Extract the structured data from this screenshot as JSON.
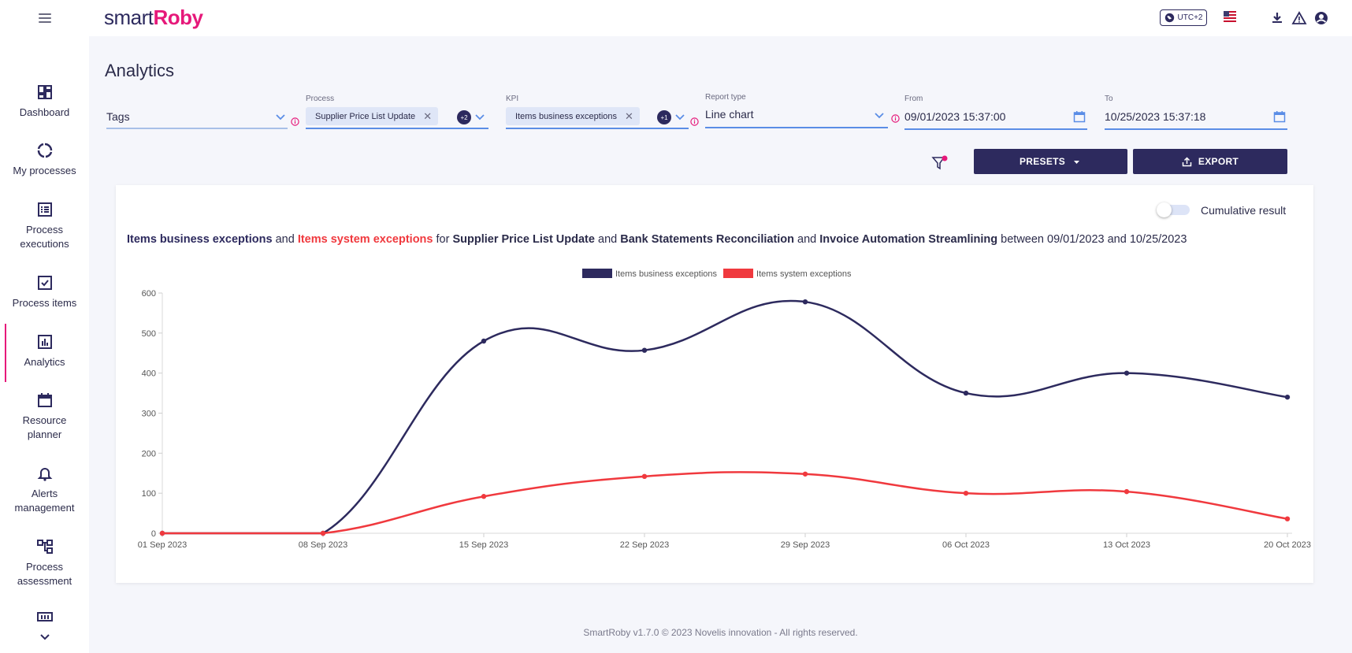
{
  "app": {
    "logo_part1": "smart",
    "logo_part2": "Roby",
    "timezone": "UTC+2",
    "accent": "#e6197a",
    "primary": "#2d2a5e",
    "header_icons": [
      "download-icon",
      "warning-icon",
      "account-icon"
    ]
  },
  "sidebar": {
    "items": [
      {
        "label": "Dashboard",
        "icon": "dashboard-icon"
      },
      {
        "label": "My processes",
        "icon": "processes-icon"
      },
      {
        "label": "Process\nexecutions",
        "icon": "list-icon"
      },
      {
        "label": "Process items",
        "icon": "checkbox-icon"
      },
      {
        "label": "Analytics",
        "icon": "analytics-icon",
        "active": true
      },
      {
        "label": "Resource\nplanner",
        "icon": "calendar-icon"
      },
      {
        "label": "Alerts\nmanagement",
        "icon": "bell-icon"
      },
      {
        "label": "Process\nassessment",
        "icon": "flow-icon"
      }
    ]
  },
  "page": {
    "title": "Analytics"
  },
  "filters": {
    "tags": {
      "placeholder": "Tags"
    },
    "process": {
      "label": "Process",
      "chip": "Supplier Price List Update",
      "extra_count": "+2"
    },
    "kpi": {
      "label": "KPI",
      "chip": "Items business exceptions",
      "extra_count": "+1"
    },
    "report_type": {
      "label": "Report type",
      "value": "Line chart"
    },
    "from": {
      "label": "From",
      "value": "09/01/2023 15:37:00"
    },
    "to": {
      "label": "To",
      "value": "10/25/2023 15:37:18"
    }
  },
  "actions": {
    "presets": "PRESETS",
    "export": "EXPORT"
  },
  "report": {
    "cumulative_label": "Cumulative result",
    "cumulative_on": false,
    "title_parts": {
      "kpi1": "Items business exceptions",
      "and1": "and",
      "kpi2": "Items system exceptions",
      "for": "for",
      "proc1": "Supplier Price List Update",
      "and2": "and",
      "proc2": "Bank Statements Reconciliation",
      "and3": "and",
      "proc3": "Invoice Automation Streamlining",
      "between": "between 09/01/2023 and 10/25/2023"
    }
  },
  "chart_data": {
    "type": "line",
    "title": "",
    "xlabel": "",
    "ylabel": "",
    "categories": [
      "01 Sep 2023",
      "08 Sep 2023",
      "15 Sep 2023",
      "22 Sep 2023",
      "29 Sep 2023",
      "06 Oct 2023",
      "13 Oct 2023",
      "20 Oct 2023"
    ],
    "ylim": [
      0,
      600
    ],
    "yticks": [
      0,
      100,
      200,
      300,
      400,
      500,
      600
    ],
    "legend_position": "top-center",
    "grid": false,
    "series": [
      {
        "name": "Items business exceptions",
        "color": "#2d2a5e",
        "values": [
          0,
          0,
          480,
          457,
          578,
          350,
          400,
          340
        ]
      },
      {
        "name": "Items system exceptions",
        "color": "#f0393e",
        "values": [
          0,
          0,
          92,
          142,
          148,
          100,
          104,
          36
        ]
      }
    ]
  },
  "footer": {
    "text": "SmartRoby v1.7.0 © 2023 Novelis innovation - All rights reserved."
  }
}
